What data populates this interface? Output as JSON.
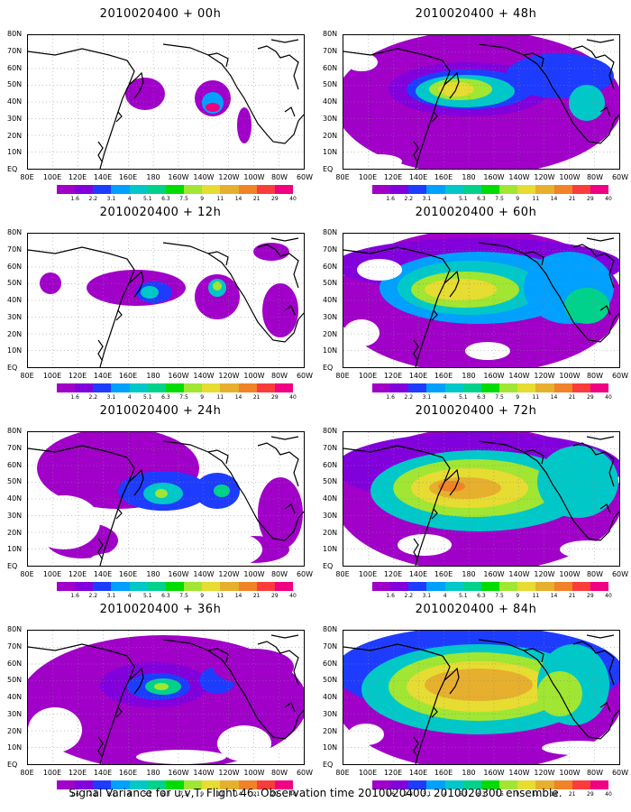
{
  "caption": "Signal Variance for u,v,T. Flight 46. Observation time 2010020400. 2010020300 ensemble.",
  "colorbar": {
    "labels": [
      "1.6",
      "2.2",
      "3.1",
      "4",
      "5.1",
      "6.3",
      "7.5",
      "9",
      "11",
      "14",
      "21",
      "29",
      "40"
    ],
    "colors": [
      "#a000c8",
      "#8200dc",
      "#1e3cff",
      "#00a0ff",
      "#00c8c8",
      "#00d28c",
      "#00dc00",
      "#a0e632",
      "#e6dc32",
      "#e6af2d",
      "#f08228",
      "#fa3c3c",
      "#f00082"
    ]
  },
  "lat_labels": [
    "80N",
    "70N",
    "60N",
    "50N",
    "40N",
    "30N",
    "20N",
    "10N",
    "EQ"
  ],
  "lon_labels": [
    "80E",
    "100E",
    "120E",
    "140E",
    "160E",
    "180",
    "160W",
    "140W",
    "120W",
    "100W",
    "80W",
    "60W"
  ],
  "chart_data": [
    {
      "type": "heatmap",
      "title": "2010020400 + 00h",
      "xlim": [
        "80E",
        "60W"
      ],
      "ylim": [
        "EQ",
        "80N"
      ]
    },
    {
      "type": "heatmap",
      "title": "2010020400 + 12h",
      "xlim": [
        "80E",
        "60W"
      ],
      "ylim": [
        "EQ",
        "80N"
      ]
    },
    {
      "type": "heatmap",
      "title": "2010020400 + 24h",
      "xlim": [
        "80E",
        "60W"
      ],
      "ylim": [
        "EQ",
        "80N"
      ]
    },
    {
      "type": "heatmap",
      "title": "2010020400 + 36h",
      "xlim": [
        "80E",
        "60W"
      ],
      "ylim": [
        "EQ",
        "80N"
      ]
    },
    {
      "type": "heatmap",
      "title": "2010020400 + 48h",
      "xlim": [
        "80E",
        "60W"
      ],
      "ylim": [
        "EQ",
        "80N"
      ]
    },
    {
      "type": "heatmap",
      "title": "2010020400 + 60h",
      "xlim": [
        "80E",
        "60W"
      ],
      "ylim": [
        "EQ",
        "80N"
      ]
    },
    {
      "type": "heatmap",
      "title": "2010020400 + 72h",
      "xlim": [
        "80E",
        "60W"
      ],
      "ylim": [
        "EQ",
        "80N"
      ]
    },
    {
      "type": "heatmap",
      "title": "2010020400 + 84h",
      "xlim": [
        "80E",
        "60W"
      ],
      "ylim": [
        "EQ",
        "80N"
      ]
    }
  ]
}
